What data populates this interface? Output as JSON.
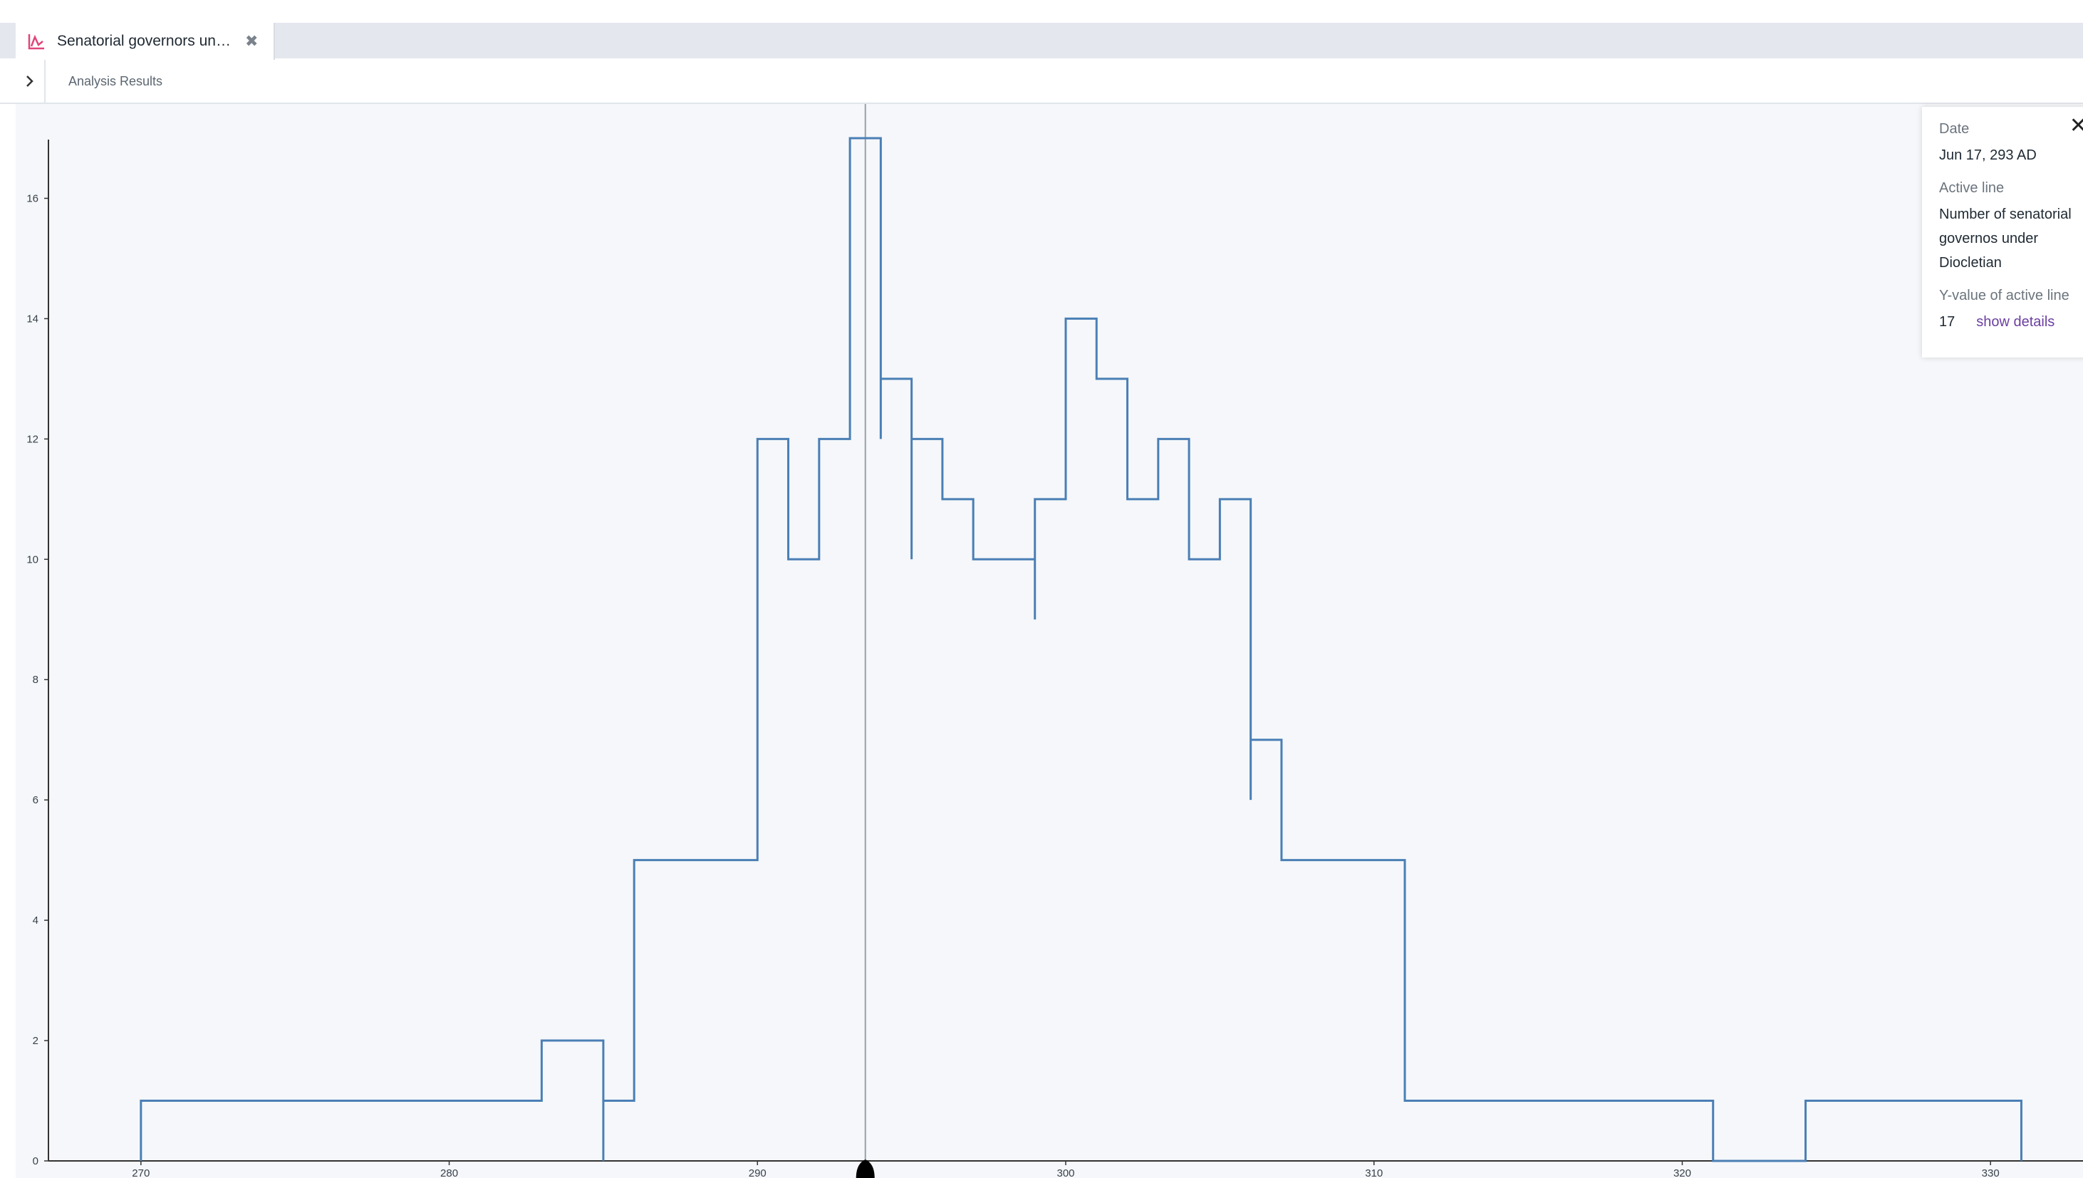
{
  "tab": {
    "title": "Senatorial governors un…",
    "icon": "line-chart-icon",
    "close_glyph": "✖"
  },
  "breadcrumb": {
    "expand_glyph": "›",
    "label": "Analysis Results"
  },
  "colors": {
    "series": "#4a7fb5",
    "cursor": "#9aa0a6",
    "tab_icon": "#e0457b",
    "link": "#6b3fa0"
  },
  "tooltip": {
    "date_label": "Date",
    "date_value": "Jun 17, 293 AD",
    "active_line_label": "Active line",
    "active_line_value": "Number of senatorial governos under Diocletian",
    "y_label": "Y-value of active line",
    "y_value": "17",
    "show_details": "show details"
  },
  "chart_data": {
    "type": "line",
    "step": true,
    "title": "",
    "xlabel": "",
    "ylabel": "",
    "xlim": [
      267.0,
      333.0
    ],
    "ylim": [
      0,
      17
    ],
    "x_ticks": [
      "270",
      "280",
      "290",
      "300",
      "310",
      "320",
      "330"
    ],
    "x_tick_values": [
      270,
      280,
      290,
      300,
      310,
      320,
      330
    ],
    "y_ticks": [
      "0",
      "2",
      "4",
      "6",
      "8",
      "10",
      "12",
      "14",
      "16"
    ],
    "y_tick_values": [
      0,
      2,
      4,
      6,
      8,
      10,
      12,
      14,
      16
    ],
    "series": [
      {
        "name": "Number of senatorial governos under Diocletian",
        "points": [
          {
            "x": 270,
            "y": 1
          },
          {
            "x": 283,
            "y": 2
          },
          {
            "x": 285,
            "y": 0
          },
          {
            "x": 285,
            "y": 1
          },
          {
            "x": 286,
            "y": 5
          },
          {
            "x": 290,
            "y": 12
          },
          {
            "x": 291,
            "y": 10
          },
          {
            "x": 292,
            "y": 12
          },
          {
            "x": 293,
            "y": 17
          },
          {
            "x": 294,
            "y": 12
          },
          {
            "x": 294,
            "y": 13
          },
          {
            "x": 295,
            "y": 10
          },
          {
            "x": 295,
            "y": 12
          },
          {
            "x": 296,
            "y": 11
          },
          {
            "x": 297,
            "y": 10
          },
          {
            "x": 299,
            "y": 9
          },
          {
            "x": 299,
            "y": 11
          },
          {
            "x": 300,
            "y": 14
          },
          {
            "x": 301,
            "y": 13
          },
          {
            "x": 302,
            "y": 11
          },
          {
            "x": 303,
            "y": 12
          },
          {
            "x": 304,
            "y": 10
          },
          {
            "x": 305,
            "y": 11
          },
          {
            "x": 306,
            "y": 6
          },
          {
            "x": 306,
            "y": 7
          },
          {
            "x": 307,
            "y": 5
          },
          {
            "x": 311,
            "y": 1
          },
          {
            "x": 321,
            "y": 0
          },
          {
            "x": 324,
            "y": 1
          },
          {
            "x": 331,
            "y": 0
          }
        ]
      }
    ],
    "cursor_x": 293.5,
    "grid": false,
    "legend": "none"
  }
}
